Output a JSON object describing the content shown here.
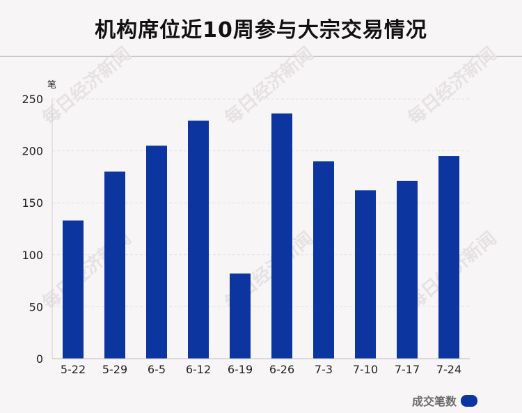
{
  "title": "机构席位近10周参与大宗交易情况",
  "watermark": "每日经济新闻",
  "legend": {
    "label": "成交笔数",
    "color": "#0c35a0"
  },
  "colors": {
    "bar": "#0c35a0",
    "background": "#f8f5f6",
    "grid": "#e3e0e2"
  },
  "chart_data": {
    "type": "bar",
    "title": "机构席位近10周参与大宗交易情况",
    "ylabel": "笔",
    "xlabel": "",
    "ylim": [
      0,
      250
    ],
    "yticks": [
      0,
      50,
      100,
      150,
      200,
      250
    ],
    "categories": [
      "5-22",
      "5-29",
      "6-5",
      "6-12",
      "6-19",
      "6-26",
      "7-3",
      "7-10",
      "7-17",
      "7-24"
    ],
    "series": [
      {
        "name": "成交笔数",
        "values": [
          133,
          180,
          205,
          229,
          82,
          236,
          190,
          162,
          171,
          195
        ]
      }
    ],
    "grid": true,
    "legend_position": "bottom-right"
  }
}
